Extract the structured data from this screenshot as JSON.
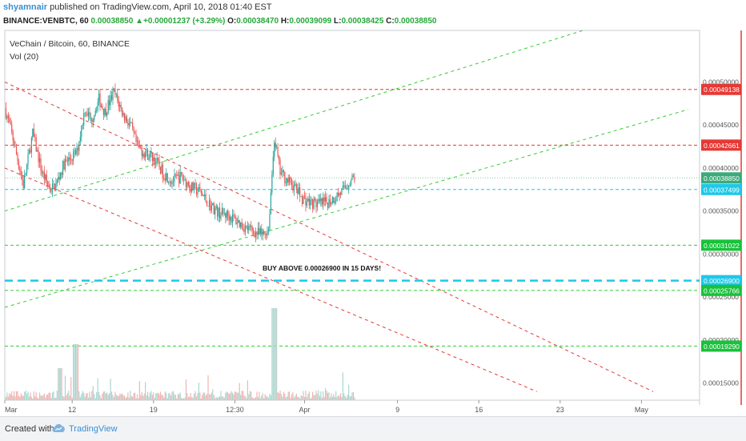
{
  "header": {
    "author": "shyamnair",
    "published": "published on TradingView.com, April 10, 2018 01:40 EST",
    "symbol": "BINANCE:VENBTC, 60",
    "last": "0.00038850",
    "change_arrow": "▲",
    "change": "+0.00001237 (+3.29%)",
    "o_label": "O:",
    "o": "0.00038470",
    "h_label": "H:",
    "h": "0.00039099",
    "l_label": "L:",
    "l": "0.00038425",
    "c_label": "C:",
    "c": "0.00038850"
  },
  "footer": {
    "created": "Created with",
    "brand": "TradingView"
  },
  "colors": {
    "red": "#e53935",
    "green": "#33cc33",
    "cyan": "#1ec8e8",
    "up": "#26a69a",
    "down": "#ef5350"
  },
  "chart_data": {
    "type": "candlestick",
    "title": "VeChain / Bitcoin, 60, BINANCE",
    "indicator": "Vol (20)",
    "annotation": "BUY ABOVE 0.00026900 IN 15 DAYS!",
    "ylim": [
      0.00013,
      0.00056
    ],
    "y_ticks": [
      "0.00015000",
      "0.00020000",
      "0.00025000",
      "0.00030000",
      "0.00035000",
      "0.00040000",
      "0.00045000",
      "0.00050000"
    ],
    "y_tick_values": [
      0.00015,
      0.0002,
      0.00025,
      0.0003,
      0.00035,
      0.0004,
      0.00045,
      0.0005
    ],
    "x_ticks": [
      "Mar",
      "12",
      "19",
      "12:30",
      "Apr",
      "9",
      "16",
      "23",
      "May"
    ],
    "x_tick_days": [
      6.2,
      12,
      19,
      26,
      32,
      40,
      47,
      54,
      61
    ],
    "xlim": [
      6.2,
      66
    ],
    "horizontal_levels": [
      {
        "value": 0.00049138,
        "label": "0.00049138",
        "style": "red"
      },
      {
        "value": 0.00042661,
        "label": "0.00042661",
        "style": "red"
      },
      {
        "value": 0.0003885,
        "label": "0.00038850",
        "style": "last"
      },
      {
        "value": 0.00037499,
        "label": "0.00037499",
        "style": "cyan"
      },
      {
        "value": 0.00031022,
        "label": "0.00031022",
        "style": "green"
      },
      {
        "value": 0.000269,
        "label": "0.00026900",
        "style": "cyan-bold"
      },
      {
        "value": 0.00025766,
        "label": "0.00025766",
        "style": "green"
      },
      {
        "value": 0.0001929,
        "label": "0.00019290",
        "style": "green"
      }
    ],
    "trend_lines": [
      {
        "style": "red",
        "from": [
          6.2,
          0.0005
        ],
        "to": [
          62,
          0.00014
        ]
      },
      {
        "style": "red",
        "from": [
          6.2,
          0.0004
        ],
        "to": [
          52,
          0.00014
        ]
      },
      {
        "style": "green",
        "from": [
          6.2,
          0.00035
        ],
        "to": [
          60,
          0.000577
        ]
      },
      {
        "style": "green",
        "from": [
          6.2,
          0.000238
        ],
        "to": [
          65,
          0.000468
        ]
      }
    ],
    "price_path": [
      [
        6.2,
        0.00047
      ],
      [
        6.8,
        0.00044
      ],
      [
        7.8,
        0.00038
      ],
      [
        8.6,
        0.00044
      ],
      [
        9.4,
        0.000395
      ],
      [
        10.1,
        0.000375
      ],
      [
        10.6,
        0.00038
      ],
      [
        11.3,
        0.000405
      ],
      [
        11.8,
        0.00041
      ],
      [
        12.4,
        0.000418
      ],
      [
        13.1,
        0.00047
      ],
      [
        13.6,
        0.000455
      ],
      [
        14.3,
        0.00048
      ],
      [
        14.8,
        0.000465
      ],
      [
        15.6,
        0.000488
      ],
      [
        16.4,
        0.000462
      ],
      [
        17.0,
        0.00045
      ],
      [
        17.6,
        0.000425
      ],
      [
        18.2,
        0.000418
      ],
      [
        19.0,
        0.000412
      ],
      [
        19.8,
        0.000395
      ],
      [
        20.6,
        0.000385
      ],
      [
        21.4,
        0.00039
      ],
      [
        22.2,
        0.000378
      ],
      [
        23.0,
        0.000372
      ],
      [
        23.8,
        0.000358
      ],
      [
        24.6,
        0.000348
      ],
      [
        25.4,
        0.000345
      ],
      [
        26.2,
        0.000338
      ],
      [
        27.0,
        0.00033
      ],
      [
        27.8,
        0.000325
      ],
      [
        28.4,
        0.000322
      ],
      [
        28.9,
        0.00033
      ],
      [
        29.4,
        0.000435
      ],
      [
        29.9,
        0.000395
      ],
      [
        30.6,
        0.000385
      ],
      [
        31.3,
        0.000375
      ],
      [
        31.8,
        0.000365
      ],
      [
        32.4,
        0.00036
      ],
      [
        33.2,
        0.000358
      ],
      [
        34.0,
        0.00036
      ],
      [
        34.8,
        0.000368
      ],
      [
        35.4,
        0.000375
      ],
      [
        35.9,
        0.000385
      ],
      [
        36.3,
        0.000389
      ]
    ]
  }
}
